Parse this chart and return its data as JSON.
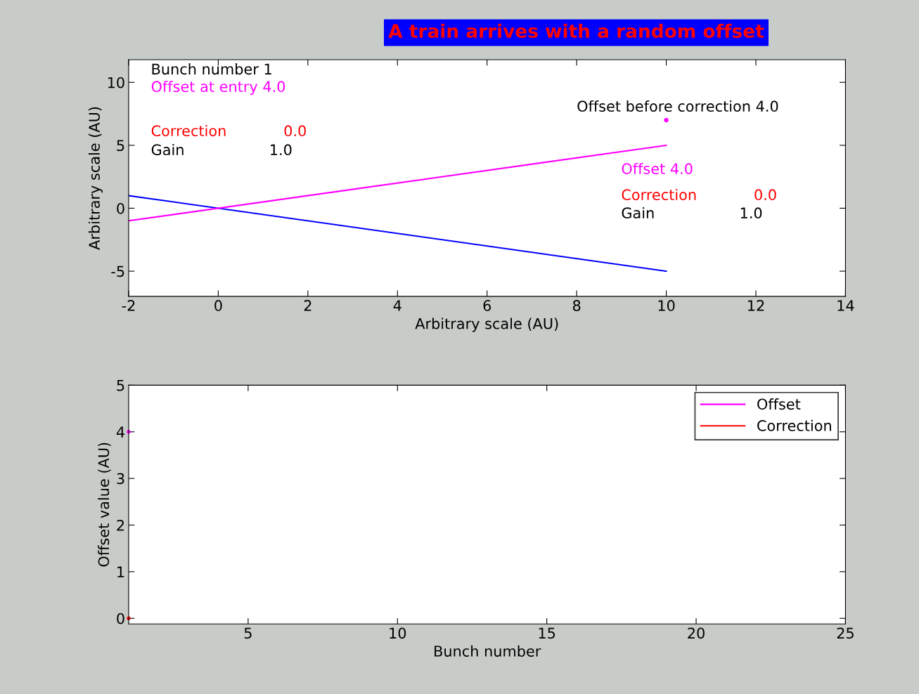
{
  "chart_data": [
    {
      "type": "line",
      "title": "A train arrives with a random offset",
      "xlabel": "Arbitrary scale (AU)",
      "ylabel": "Arbitrary scale (AU)",
      "xlim": [
        -2,
        14
      ],
      "ylim": [
        -7,
        11.8
      ],
      "xticks": [
        -2,
        0,
        2,
        4,
        6,
        8,
        10,
        12,
        14
      ],
      "yticks": [
        -5,
        0,
        5,
        10
      ],
      "grid": false,
      "legend": false,
      "line_style": "solid",
      "series": [
        {
          "color": "#0000ff",
          "x": [
            -2,
            10
          ],
          "values": [
            1,
            -5
          ]
        },
        {
          "color": "#ff00ff",
          "x": [
            -2,
            10
          ],
          "values": [
            -1,
            5
          ]
        },
        {
          "type": "scatter",
          "color": "#ff00ff",
          "x": [
            10
          ],
          "values": [
            7
          ]
        }
      ],
      "annotations": [
        "Bunch number 1",
        "Offset at entry 4.0",
        "Correction",
        "0.0",
        "Gain",
        "1.0",
        "Offset before correction 4.0",
        "Offset 4.0",
        "Correction",
        "0.0",
        "Gain",
        "1.0"
      ]
    },
    {
      "type": "line",
      "xlabel": "Bunch number",
      "ylabel": "Offset value (AU)",
      "xlim": [
        1,
        25
      ],
      "ylim": [
        -0.12,
        5
      ],
      "xticks": [
        5,
        10,
        15,
        20,
        25
      ],
      "yticks": [
        0,
        1,
        2,
        3,
        4,
        5
      ],
      "grid": false,
      "legend": "top right",
      "line_style": "solid",
      "marker": "circle",
      "series": [
        {
          "name": "Offset",
          "color": "#ff00ff",
          "x": [
            1
          ],
          "values": [
            4
          ]
        },
        {
          "name": "Correction",
          "color": "#ff0000",
          "x": [
            1
          ],
          "values": [
            0
          ]
        }
      ]
    }
  ]
}
